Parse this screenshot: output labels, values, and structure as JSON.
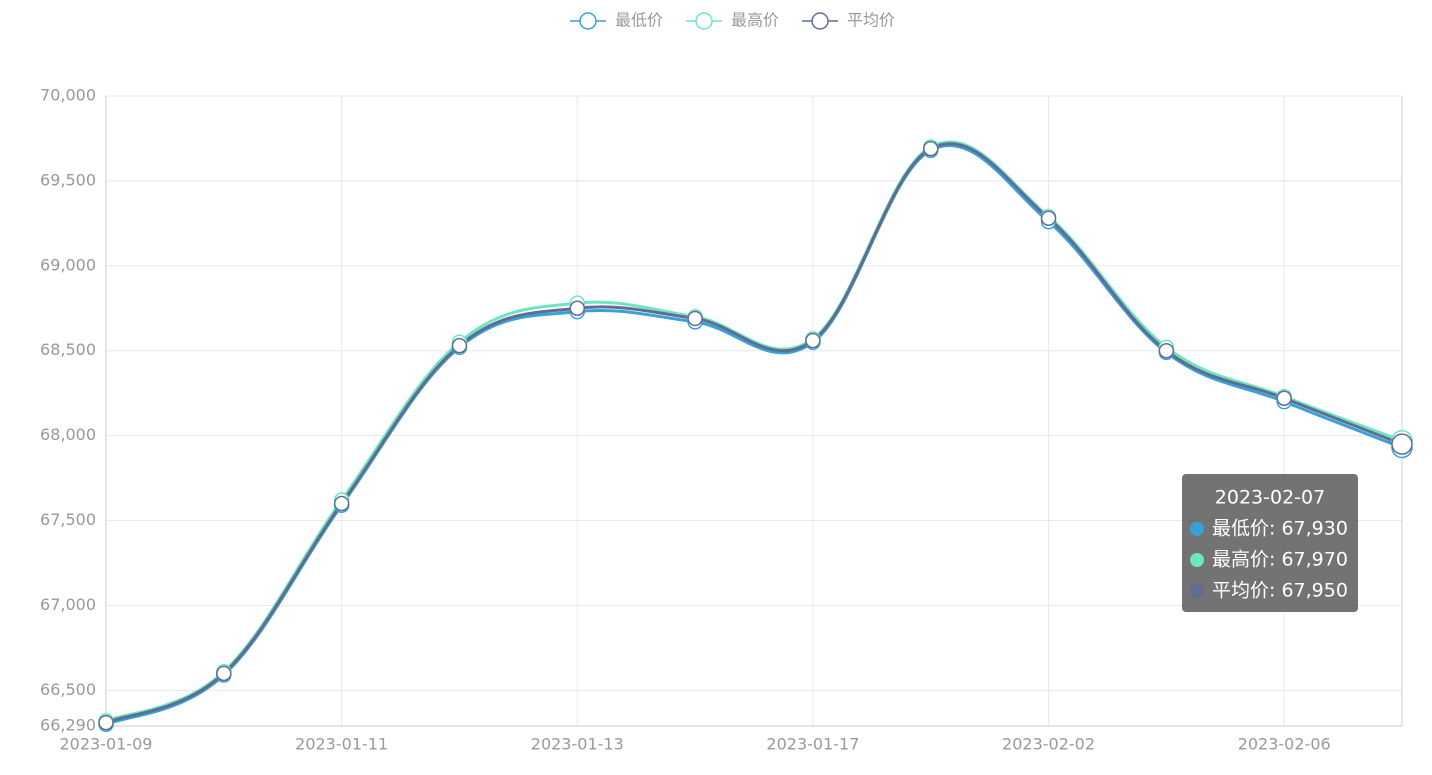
{
  "chart_data": {
    "type": "line",
    "smooth": true,
    "categories": [
      "2023-01-09",
      null,
      "2023-01-11",
      null,
      "2023-01-13",
      null,
      "2023-01-17",
      null,
      "2023-02-02",
      null,
      "2023-02-06",
      "2023-02-07"
    ],
    "series": [
      {
        "name": "最低价",
        "color": "#37a2da",
        "values": [
          66300,
          66590,
          67590,
          68520,
          68730,
          68670,
          68550,
          69680,
          69260,
          68490,
          68200,
          67930
        ]
      },
      {
        "name": "最高价",
        "color": "#6be6c1",
        "values": [
          66320,
          66610,
          67620,
          68550,
          68780,
          68700,
          68570,
          69700,
          69290,
          68520,
          68230,
          67970
        ]
      },
      {
        "name": "平均价",
        "color": "#626c91",
        "values": [
          66310,
          66600,
          67600,
          68530,
          68750,
          68690,
          68560,
          69690,
          69280,
          68500,
          68220,
          67950
        ]
      }
    ],
    "ylim": [
      66290,
      70000
    ],
    "yticks": [
      {
        "value": 66290,
        "label": "66,290"
      },
      {
        "value": 66500,
        "label": "66,500"
      },
      {
        "value": 67000,
        "label": "67,000"
      },
      {
        "value": 67500,
        "label": "67,500"
      },
      {
        "value": 68000,
        "label": "68,000"
      },
      {
        "value": 68500,
        "label": "68,500"
      },
      {
        "value": 69000,
        "label": "69,000"
      },
      {
        "value": 69500,
        "label": "69,500"
      },
      {
        "value": 70000,
        "label": "70,000"
      }
    ],
    "grid": true,
    "legend": "top",
    "tooltip": {
      "rows": [
        "最低价: 67,930",
        "最高价: 67,970",
        "平均价: 67,950"
      ]
    }
  }
}
